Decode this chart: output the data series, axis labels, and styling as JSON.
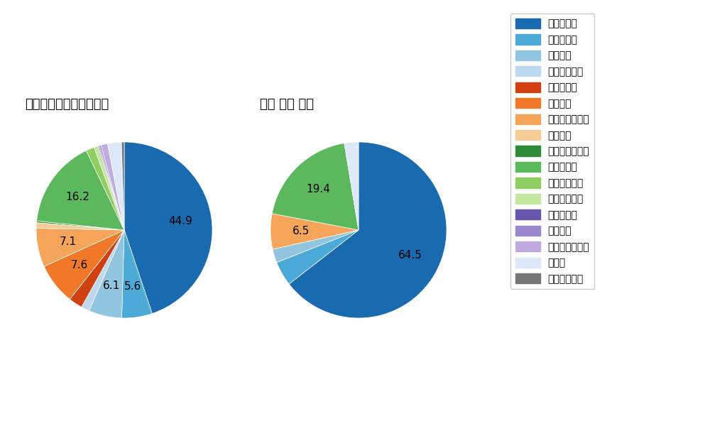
{
  "left_title": "セ・リーグ全プレイヤー",
  "right_title": "山崎 伊織 選手",
  "pitch_types": [
    "ストレート",
    "ツーシーム",
    "シュート",
    "カットボール",
    "スプリット",
    "フォーク",
    "チェンジアップ",
    "シンカー",
    "高速スライダー",
    "スライダー",
    "縦スライダー",
    "パワーカーブ",
    "スクリュー",
    "ナックル",
    "ナックルカーブ",
    "カーブ",
    "スローカーブ"
  ],
  "colors": [
    "#1a6ab0",
    "#4baad8",
    "#92c5e0",
    "#bdd9ee",
    "#d04010",
    "#f07828",
    "#f5a55a",
    "#f5cc96",
    "#2e8b38",
    "#5cb85c",
    "#8fce60",
    "#c5e8a0",
    "#6655aa",
    "#9988cc",
    "#c0aae0",
    "#dde8f8",
    "#777777"
  ],
  "left_values": [
    44.2,
    5.5,
    6.0,
    1.5,
    2.5,
    7.5,
    7.0,
    1.0,
    0.3,
    16.0,
    1.5,
    0.8,
    0.2,
    0.3,
    1.2,
    2.5,
    0.5
  ],
  "right_values": [
    64.5,
    4.5,
    2.5,
    0.0,
    0.0,
    0.0,
    6.5,
    0.0,
    0.0,
    19.4,
    0.0,
    0.0,
    0.0,
    0.0,
    0.0,
    2.6,
    0.0
  ],
  "label_threshold": 5.0,
  "background_color": "#ffffff",
  "text_color": "#000000",
  "title_fontsize": 13,
  "label_fontsize": 11,
  "legend_fontsize": 10
}
